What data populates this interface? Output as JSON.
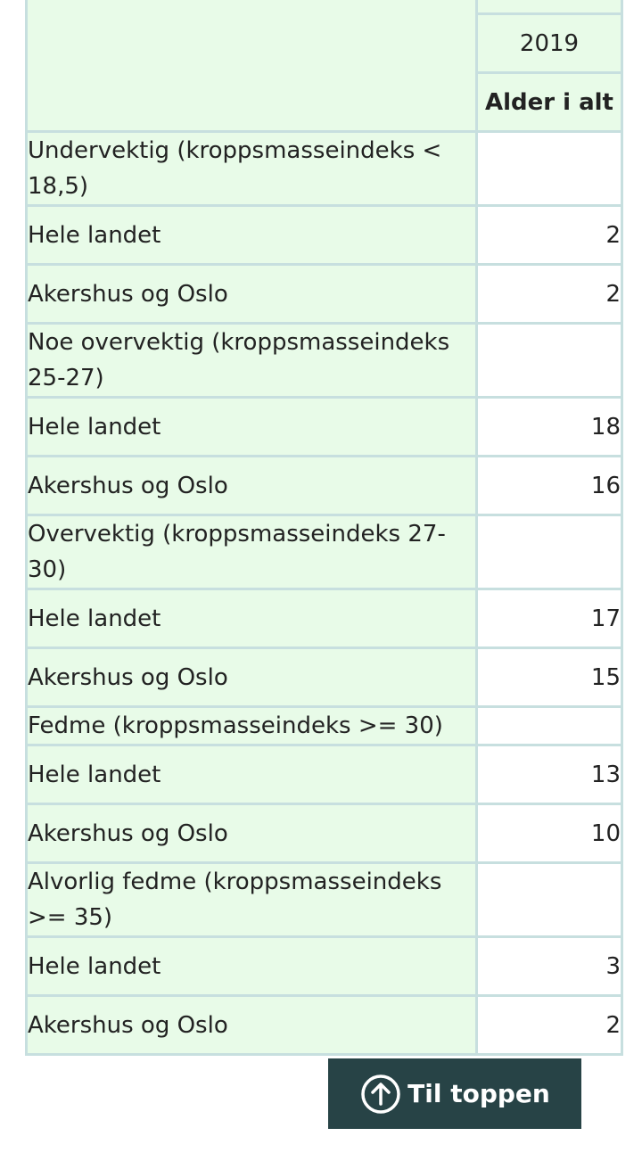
{
  "table": {
    "year": "2019",
    "age_header": "Alder i alt",
    "groups": [
      {
        "label": "Undervektig (kroppsmasseindeks < 18,5)",
        "rows": [
          {
            "region": "Hele landet",
            "value": "2"
          },
          {
            "region": "Akershus og Oslo",
            "value": "2"
          }
        ]
      },
      {
        "label": "Noe overvektig (kroppsmasseindeks 25-27)",
        "rows": [
          {
            "region": "Hele landet",
            "value": "18"
          },
          {
            "region": "Akershus og Oslo",
            "value": "16"
          }
        ]
      },
      {
        "label": "Overvektig (kroppsmasseindeks 27-30)",
        "rows": [
          {
            "region": "Hele landet",
            "value": "17"
          },
          {
            "region": "Akershus og Oslo",
            "value": "15"
          }
        ]
      },
      {
        "label": "Fedme (kroppsmasseindeks >= 30)",
        "rows": [
          {
            "region": "Hele landet",
            "value": "13"
          },
          {
            "region": "Akershus og Oslo",
            "value": "10"
          }
        ]
      },
      {
        "label": "Alvorlig fedme (kroppsmasseindeks >= 35)",
        "rows": [
          {
            "region": "Hele landet",
            "value": "3"
          },
          {
            "region": "Akershus og Oslo",
            "value": "2"
          }
        ]
      }
    ]
  },
  "back_to_top": {
    "label": "Til toppen",
    "icon": "arrow-up-circle-icon"
  },
  "colors": {
    "header_bg": "#e8fbe8",
    "cell_border": "#c7dfdf",
    "button_bg": "#274346",
    "button_text": "#ffffff"
  }
}
